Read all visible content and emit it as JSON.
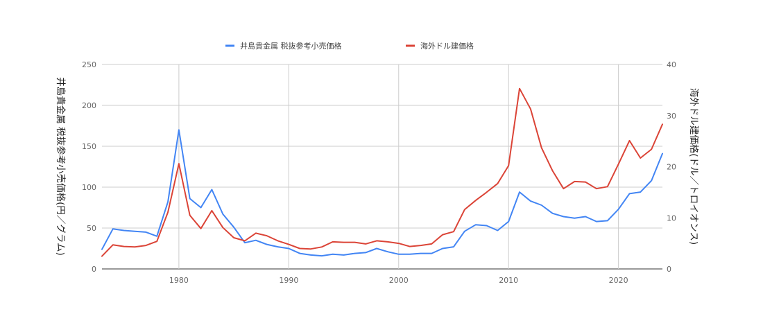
{
  "chart_data": {
    "type": "line",
    "title": "",
    "xlabel": "",
    "ylabel": "井島貴金属 税抜参考小売価格(円／グラム)",
    "ylabel_right": "海外ドル建価格(ドル／トロイオンス)",
    "xlim": [
      1973,
      2024
    ],
    "ylim": [
      0,
      250
    ],
    "ylim_right": [
      0,
      40
    ],
    "x_ticks": [
      1980,
      1990,
      2000,
      2010,
      2020
    ],
    "y_ticks": [
      0,
      50,
      100,
      150,
      200,
      250
    ],
    "y_ticks_right": [
      0,
      10,
      20,
      30,
      40
    ],
    "grid": true,
    "legend_position": "top",
    "x": [
      1973,
      1974,
      1975,
      1976,
      1977,
      1978,
      1979,
      1980,
      1981,
      1982,
      1983,
      1984,
      1985,
      1986,
      1987,
      1988,
      1989,
      1990,
      1991,
      1992,
      1993,
      1994,
      1995,
      1996,
      1997,
      1998,
      1999,
      2000,
      2001,
      2002,
      2003,
      2004,
      2005,
      2006,
      2007,
      2008,
      2009,
      2010,
      2011,
      2012,
      2013,
      2014,
      2015,
      2016,
      2017,
      2018,
      2019,
      2020,
      2021,
      2022,
      2023,
      2024
    ],
    "series": [
      {
        "name": "井島貴金属 税抜参考小売価格",
        "axis": "left",
        "color": "#4285f4",
        "values": [
          24,
          49,
          47,
          46,
          45,
          40,
          82,
          170,
          86,
          75,
          97,
          67,
          51,
          32,
          35,
          30,
          27,
          25,
          19,
          17,
          16,
          18,
          17,
          19,
          20,
          25,
          21,
          18,
          18,
          19,
          19,
          25,
          27,
          46,
          54,
          53,
          47,
          58,
          94,
          83,
          78,
          68,
          64,
          62,
          64,
          58,
          59,
          73,
          92,
          94,
          108,
          141
        ]
      },
      {
        "name": "海外ドル建価格",
        "axis": "right",
        "color": "#db4437",
        "values": [
          2.5,
          4.7,
          4.4,
          4.3,
          4.6,
          5.4,
          11.1,
          20.6,
          10.5,
          7.9,
          11.4,
          8.1,
          6.1,
          5.5,
          7.0,
          6.5,
          5.5,
          4.8,
          4.0,
          3.9,
          4.3,
          5.3,
          5.2,
          5.2,
          4.9,
          5.5,
          5.3,
          5.0,
          4.4,
          4.6,
          4.9,
          6.7,
          7.3,
          11.6,
          13.4,
          15.0,
          16.7,
          20.2,
          35.3,
          31.3,
          23.7,
          19.2,
          15.7,
          17.1,
          17.0,
          15.7,
          16.1,
          20.5,
          25.1,
          21.7,
          23.4,
          28.3
        ]
      }
    ]
  }
}
